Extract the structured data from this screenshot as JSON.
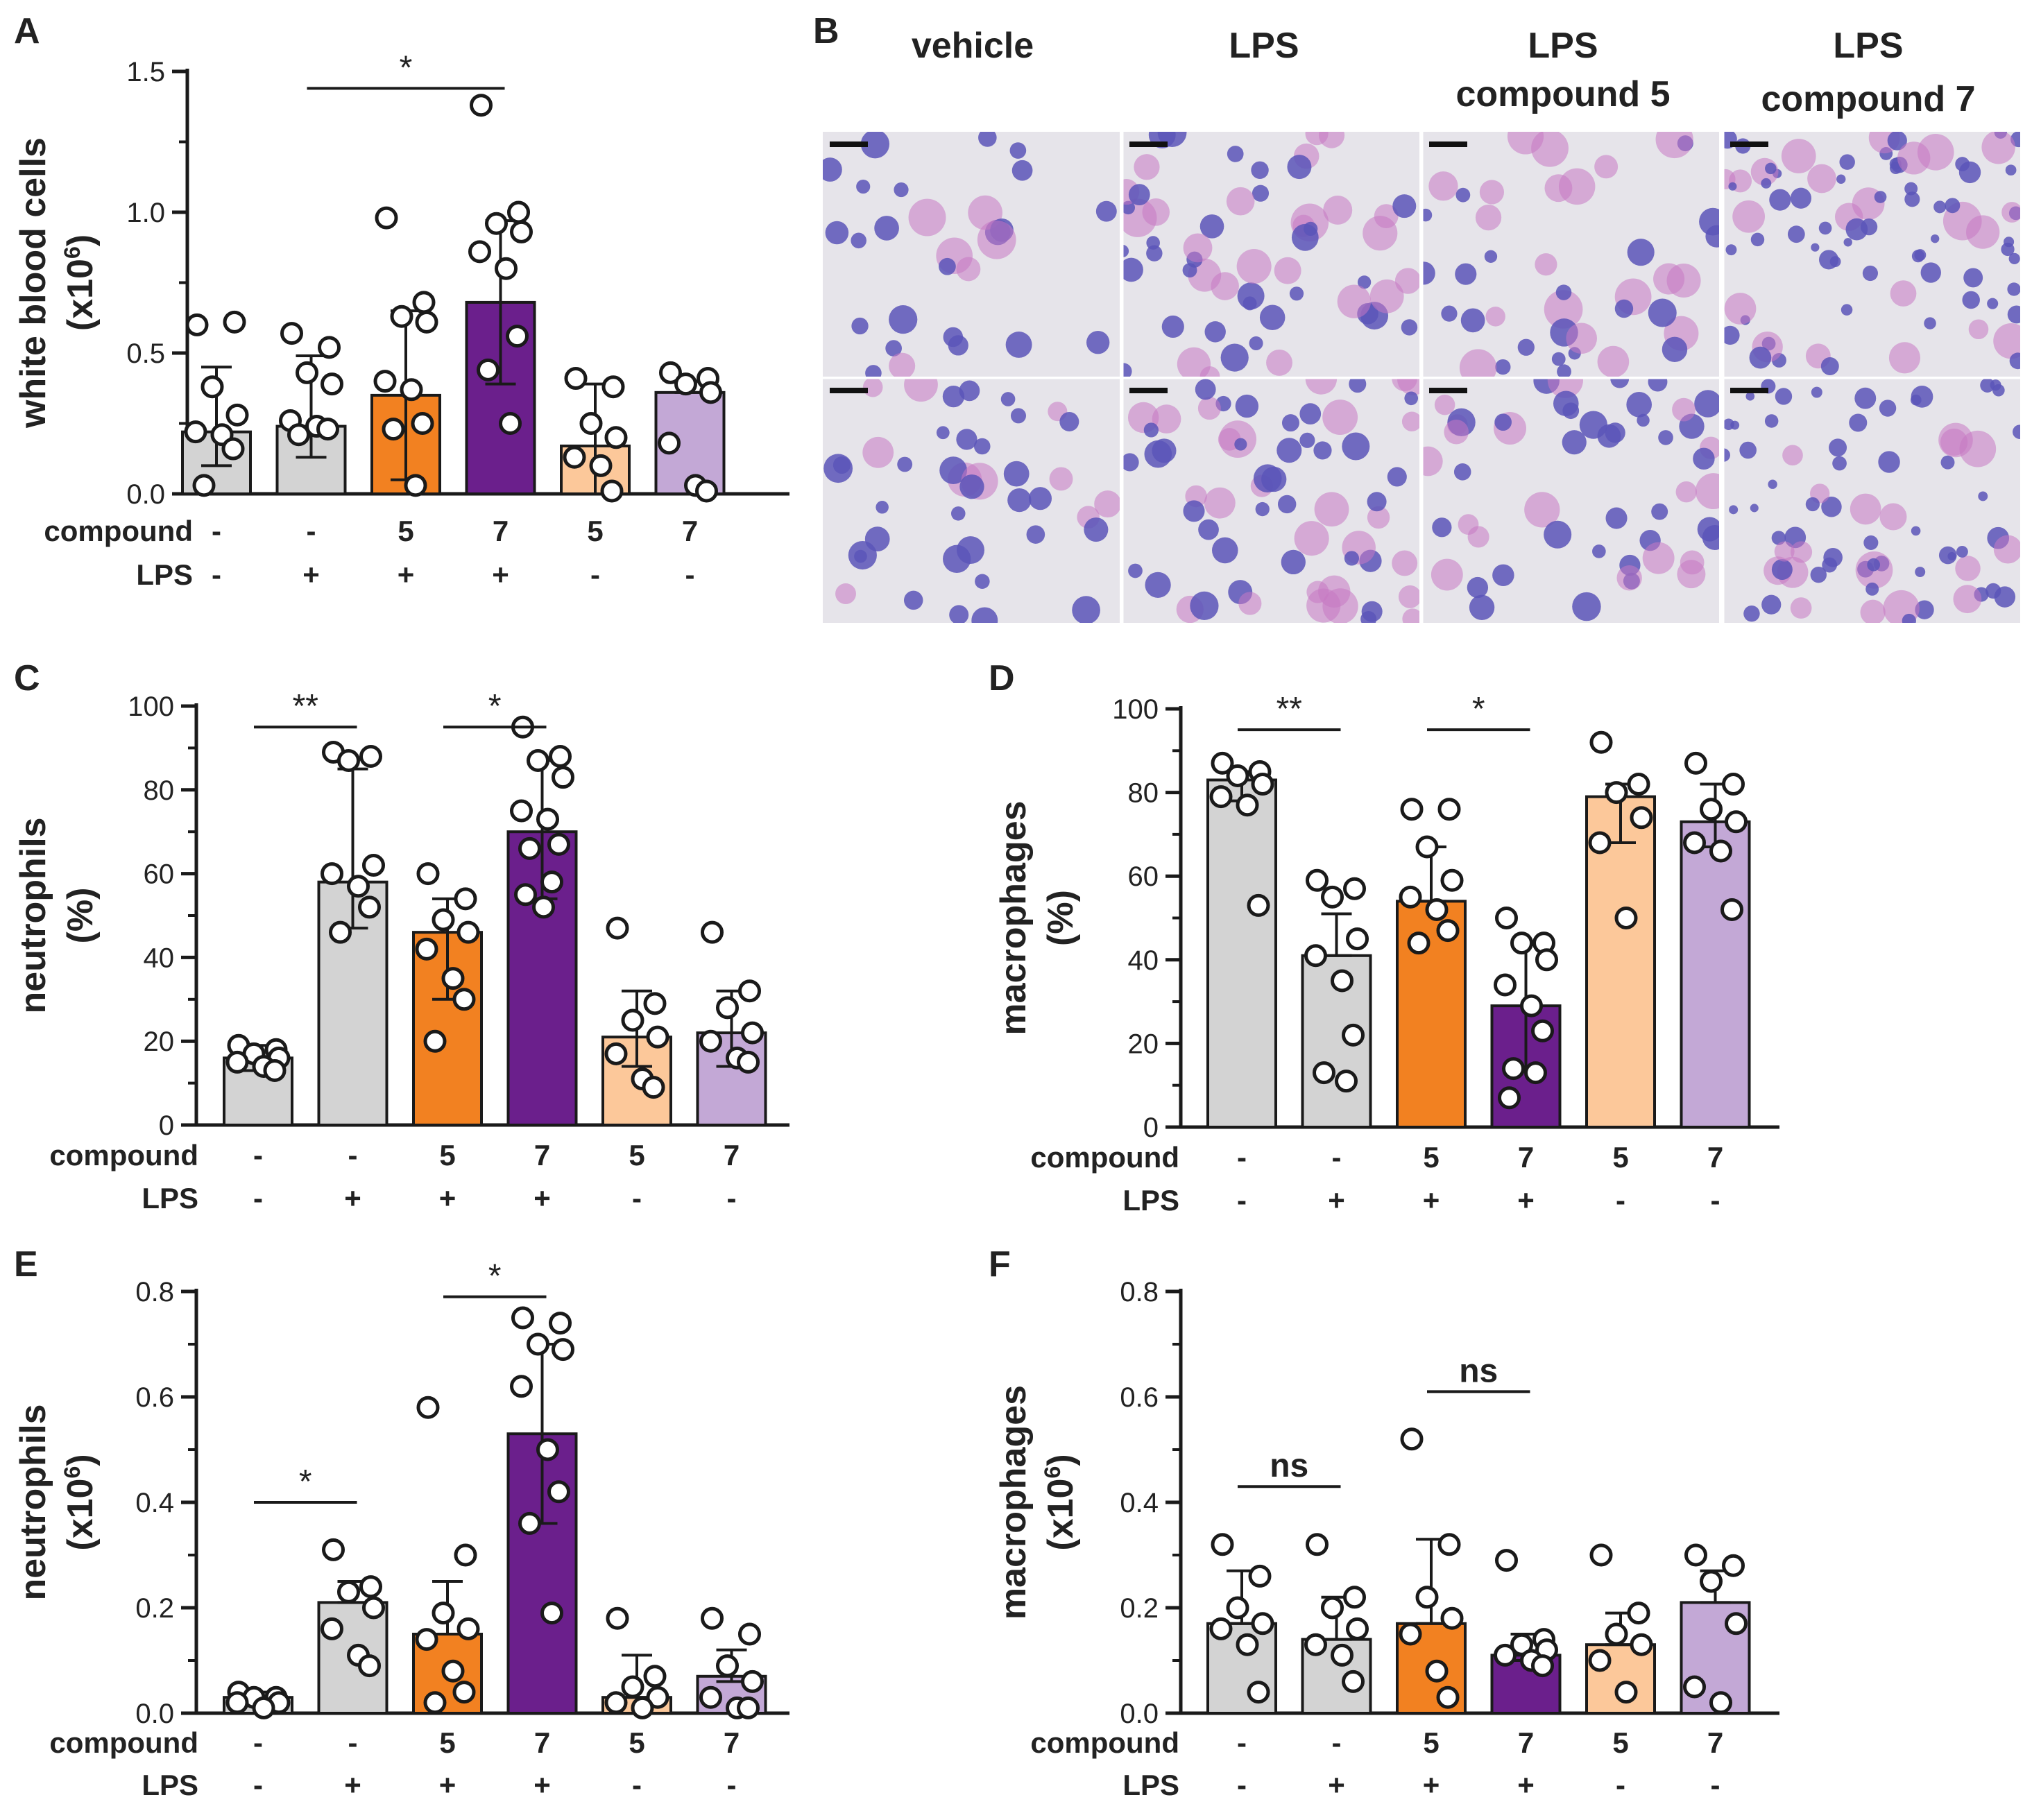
{
  "colors": {
    "gray": "#d3d3d3",
    "orange": "#f28121",
    "purple": "#6b1f8c",
    "peach": "#fcc89a",
    "lavender": "#c3a8d6",
    "stroke": "#1a1a1a",
    "cell_blue": "#5b55b8",
    "cell_pink": "#c678c2",
    "slide_bg": "#e6e4ea"
  },
  "row_labels": {
    "compound": "compound",
    "lps": "LPS"
  },
  "compound_values": [
    "-",
    "-",
    "5",
    "7",
    "5",
    "7"
  ],
  "lps_values": [
    "-",
    "+",
    "+",
    "+",
    "-",
    "-"
  ],
  "chart_data": [
    {
      "panel": "A",
      "type": "bar",
      "ylabel_line1": "white blood cells",
      "ylabel_line2": "(x10",
      "ylabel_sup": "6",
      "ylabel_close": ")",
      "ylim": [
        0,
        1.5
      ],
      "ticks": [
        {
          "v": 0,
          "label": "0.0"
        },
        {
          "v": 0.5,
          "label": "0.5"
        },
        {
          "v": 1.0,
          "label": "1.0"
        },
        {
          "v": 1.5,
          "label": "1.5"
        }
      ],
      "bars": [
        {
          "mean": 0.22,
          "sd_low": 0.1,
          "sd_high": 0.45,
          "points": [
            0.6,
            0.61,
            0.38,
            0.28,
            0.22,
            0.21,
            0.16,
            0.03
          ]
        },
        {
          "mean": 0.24,
          "sd_low": 0.13,
          "sd_high": 0.49,
          "points": [
            0.57,
            0.52,
            0.43,
            0.39,
            0.26,
            0.24,
            0.23,
            0.21
          ]
        },
        {
          "mean": 0.35,
          "sd_low": 0.05,
          "sd_high": 0.65,
          "points": [
            0.98,
            0.68,
            0.63,
            0.61,
            0.4,
            0.37,
            0.25,
            0.23,
            0.03
          ]
        },
        {
          "mean": 0.68,
          "sd_low": 0.39,
          "sd_high": 0.97,
          "points": [
            1.38,
            1.0,
            0.96,
            0.93,
            0.86,
            0.8,
            0.56,
            0.44,
            0.25
          ]
        },
        {
          "mean": 0.17,
          "sd_low": 0.0,
          "sd_high": 0.39,
          "points": [
            0.41,
            0.38,
            0.25,
            0.2,
            0.13,
            0.1,
            0.01
          ]
        },
        {
          "mean": 0.36,
          "sd_low": 0.36,
          "sd_high": 0.4,
          "points": [
            0.43,
            0.41,
            0.39,
            0.36,
            0.18,
            0.03,
            0.01
          ]
        }
      ],
      "sig": [
        {
          "from": 1,
          "to": 3,
          "label": "*",
          "y": 1.44
        }
      ]
    },
    {
      "panel": "C",
      "type": "bar",
      "ylabel_line1": "neutrophils",
      "ylabel_line2": "(%)",
      "ylabel_sup": "",
      "ylabel_close": "",
      "ylim": [
        0,
        100
      ],
      "ticks": [
        {
          "v": 0,
          "label": "0"
        },
        {
          "v": 20,
          "label": "20"
        },
        {
          "v": 40,
          "label": "40"
        },
        {
          "v": 60,
          "label": "60"
        },
        {
          "v": 80,
          "label": "80"
        },
        {
          "v": 100,
          "label": "100"
        }
      ],
      "bars": [
        {
          "mean": 16,
          "sd_low": 13,
          "sd_high": 19,
          "points": [
            19,
            18,
            17,
            16,
            15,
            14,
            13
          ]
        },
        {
          "mean": 58,
          "sd_low": 47,
          "sd_high": 85,
          "points": [
            89,
            88,
            87,
            62,
            60,
            57,
            52,
            46
          ]
        },
        {
          "mean": 46,
          "sd_low": 30,
          "sd_high": 54,
          "points": [
            60,
            54,
            49,
            46,
            42,
            35,
            30,
            20
          ]
        },
        {
          "mean": 70,
          "sd_low": 54,
          "sd_high": 87,
          "points": [
            95,
            88,
            87,
            83,
            75,
            73,
            67,
            66,
            58,
            55,
            52
          ]
        },
        {
          "mean": 21,
          "sd_low": 14,
          "sd_high": 32,
          "points": [
            47,
            29,
            25,
            21,
            17,
            11,
            9
          ]
        },
        {
          "mean": 22,
          "sd_low": 14,
          "sd_high": 32,
          "points": [
            46,
            32,
            28,
            22,
            20,
            16,
            15
          ]
        }
      ],
      "sig": [
        {
          "from": 0,
          "to": 1,
          "label": "**",
          "y": 95
        },
        {
          "from": 2,
          "to": 3,
          "label": "*",
          "y": 95
        }
      ]
    },
    {
      "panel": "D",
      "type": "bar",
      "ylabel_line1": "macrophages",
      "ylabel_line2": "(%)",
      "ylabel_sup": "",
      "ylabel_close": "",
      "ylim": [
        0,
        100
      ],
      "ticks": [
        {
          "v": 0,
          "label": "0"
        },
        {
          "v": 20,
          "label": "20"
        },
        {
          "v": 40,
          "label": "40"
        },
        {
          "v": 60,
          "label": "60"
        },
        {
          "v": 80,
          "label": "80"
        },
        {
          "v": 100,
          "label": "100"
        }
      ],
      "bars": [
        {
          "mean": 83,
          "sd_low": 78,
          "sd_high": 85,
          "points": [
            87,
            85,
            84,
            82,
            79,
            77,
            53
          ]
        },
        {
          "mean": 41,
          "sd_low": 41,
          "sd_high": 51,
          "points": [
            59,
            57,
            55,
            45,
            41,
            35,
            22,
            13,
            11
          ]
        },
        {
          "mean": 54,
          "sd_low": 54,
          "sd_high": 67,
          "points": [
            76,
            76,
            67,
            59,
            55,
            52,
            47,
            44
          ]
        },
        {
          "mean": 29,
          "sd_low": 14,
          "sd_high": 44,
          "points": [
            50,
            44,
            44,
            40,
            34,
            29,
            23,
            14,
            13,
            7
          ]
        },
        {
          "mean": 79,
          "sd_low": 68,
          "sd_high": 82,
          "points": [
            92,
            82,
            80,
            74,
            68,
            50
          ]
        },
        {
          "mean": 73,
          "sd_low": 67,
          "sd_high": 82,
          "points": [
            87,
            82,
            76,
            73,
            68,
            66,
            52
          ]
        }
      ],
      "sig": [
        {
          "from": 0,
          "to": 1,
          "label": "**",
          "y": 95
        },
        {
          "from": 2,
          "to": 3,
          "label": "*",
          "y": 95
        }
      ]
    },
    {
      "panel": "E",
      "type": "bar",
      "ylabel_line1": "neutrophils",
      "ylabel_line2": "(x10",
      "ylabel_sup": "6",
      "ylabel_close": ")",
      "ylim": [
        0,
        0.8
      ],
      "ticks": [
        {
          "v": 0,
          "label": "0.0"
        },
        {
          "v": 0.2,
          "label": "0.2"
        },
        {
          "v": 0.4,
          "label": "0.4"
        },
        {
          "v": 0.6,
          "label": "0.6"
        },
        {
          "v": 0.8,
          "label": "0.8"
        }
      ],
      "bars": [
        {
          "mean": 0.03,
          "sd_low": 0.02,
          "sd_high": 0.04,
          "points": [
            0.04,
            0.03,
            0.03,
            0.02,
            0.02,
            0.01
          ]
        },
        {
          "mean": 0.21,
          "sd_low": 0.21,
          "sd_high": 0.25,
          "points": [
            0.31,
            0.24,
            0.23,
            0.2,
            0.16,
            0.11,
            0.09
          ]
        },
        {
          "mean": 0.15,
          "sd_low": 0.15,
          "sd_high": 0.25,
          "points": [
            0.58,
            0.3,
            0.19,
            0.16,
            0.14,
            0.08,
            0.04,
            0.02
          ]
        },
        {
          "mean": 0.53,
          "sd_low": 0.36,
          "sd_high": 0.7,
          "points": [
            0.75,
            0.74,
            0.7,
            0.69,
            0.62,
            0.5,
            0.42,
            0.36,
            0.19
          ]
        },
        {
          "mean": 0.03,
          "sd_low": 0.03,
          "sd_high": 0.11,
          "points": [
            0.18,
            0.07,
            0.05,
            0.03,
            0.02,
            0.01
          ]
        },
        {
          "mean": 0.07,
          "sd_low": 0.06,
          "sd_high": 0.12,
          "points": [
            0.18,
            0.15,
            0.09,
            0.06,
            0.03,
            0.01,
            0.01
          ]
        }
      ],
      "sig": [
        {
          "from": 0,
          "to": 1,
          "label": "*",
          "y": 0.4
        },
        {
          "from": 2,
          "to": 3,
          "label": "*",
          "y": 0.79
        }
      ]
    },
    {
      "panel": "F",
      "type": "bar",
      "ylabel_line1": "macrophages",
      "ylabel_line2": "(x10",
      "ylabel_sup": "6",
      "ylabel_close": ")",
      "ylim": [
        0,
        0.8
      ],
      "ticks": [
        {
          "v": 0,
          "label": "0.0"
        },
        {
          "v": 0.2,
          "label": "0.2"
        },
        {
          "v": 0.4,
          "label": "0.4"
        },
        {
          "v": 0.6,
          "label": "0.6"
        },
        {
          "v": 0.8,
          "label": "0.8"
        }
      ],
      "bars": [
        {
          "mean": 0.17,
          "sd_low": 0.17,
          "sd_high": 0.27,
          "points": [
            0.32,
            0.26,
            0.2,
            0.17,
            0.16,
            0.13,
            0.04
          ]
        },
        {
          "mean": 0.14,
          "sd_low": 0.14,
          "sd_high": 0.22,
          "points": [
            0.32,
            0.22,
            0.2,
            0.16,
            0.13,
            0.11,
            0.06
          ]
        },
        {
          "mean": 0.17,
          "sd_low": 0.17,
          "sd_high": 0.33,
          "points": [
            0.52,
            0.32,
            0.22,
            0.18,
            0.15,
            0.08,
            0.03
          ]
        },
        {
          "mean": 0.11,
          "sd_low": 0.1,
          "sd_high": 0.15,
          "points": [
            0.29,
            0.14,
            0.13,
            0.12,
            0.11,
            0.1,
            0.09
          ]
        },
        {
          "mean": 0.13,
          "sd_low": 0.13,
          "sd_high": 0.19,
          "points": [
            0.3,
            0.19,
            0.15,
            0.13,
            0.1,
            0.04
          ]
        },
        {
          "mean": 0.21,
          "sd_low": 0.21,
          "sd_high": 0.27,
          "points": [
            0.3,
            0.28,
            0.25,
            0.17,
            0.05,
            0.02
          ]
        }
      ],
      "sig": [
        {
          "from": 0,
          "to": 1,
          "label": "ns",
          "y": 0.43
        },
        {
          "from": 2,
          "to": 3,
          "label": "ns",
          "y": 0.61
        }
      ]
    }
  ],
  "micrographs": {
    "panel": "B",
    "columns": [
      "vehicle",
      "LPS",
      "LPS compound 5",
      "LPS compound 7"
    ],
    "col_line1": [
      "vehicle",
      "LPS",
      "LPS",
      "LPS"
    ],
    "col_line2": [
      "",
      "",
      "compound 5",
      "compound 7"
    ]
  }
}
